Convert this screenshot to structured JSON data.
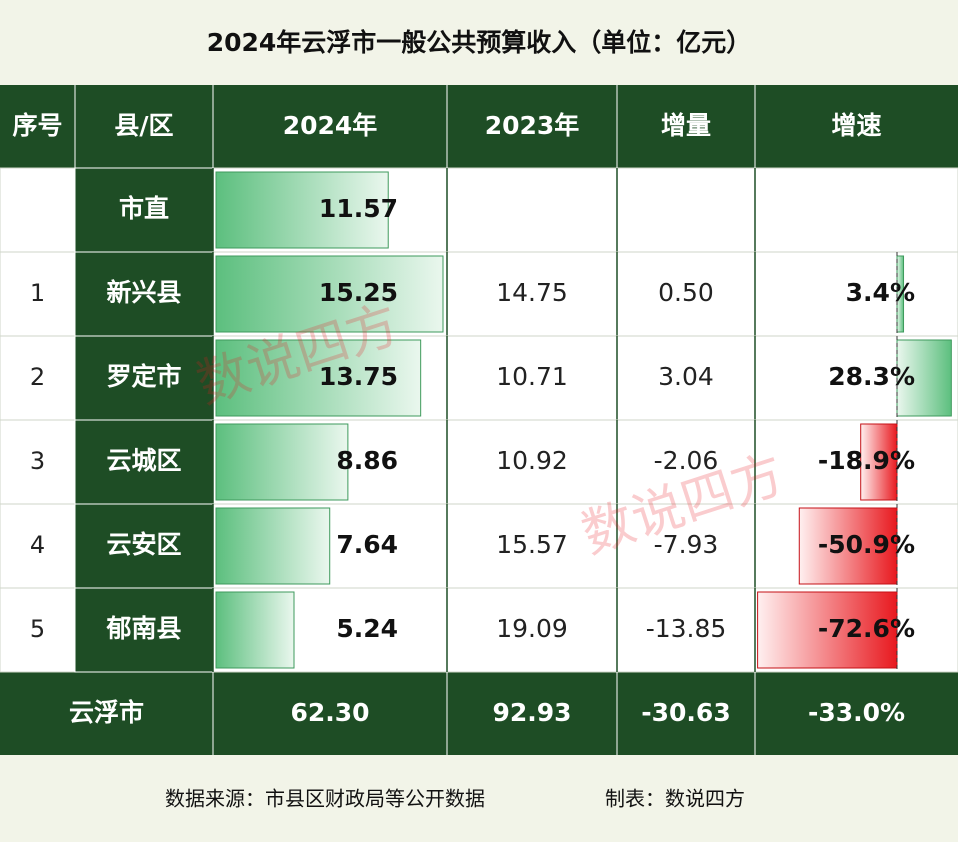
{
  "header": {
    "title": "2024年云浮市一般公共预算收入（单位：亿元）"
  },
  "table": {
    "columns": [
      "序号",
      "县/区",
      "2024年",
      "2023年",
      "增量",
      "增速"
    ],
    "rows": [
      {
        "index": null,
        "name": "市直",
        "v2024": 11.57,
        "v2023": null,
        "delta": null,
        "growth": null
      },
      {
        "index": "1",
        "name": "新兴县",
        "v2024": 15.25,
        "v2023": 14.75,
        "delta": {
          "value": 0.5,
          "label": "0.50"
        },
        "growth": {
          "value": 3.4,
          "label": "3.4%"
        }
      },
      {
        "index": "2",
        "name": "罗定市",
        "v2024": 13.75,
        "v2023": 10.71,
        "delta": 3.04,
        "growth": {
          "value": 28.3,
          "label": "28.3%"
        }
      },
      {
        "index": "3",
        "name": "云城区",
        "v2024": 8.86,
        "v2023": 10.92,
        "delta": -2.06,
        "growth": {
          "value": -18.9,
          "label": "-18.9%"
        }
      },
      {
        "index": "4",
        "name": "云安区",
        "v2024": 7.64,
        "v2023": 15.57,
        "delta": -7.93,
        "growth": {
          "value": -50.9,
          "label": "-50.9%"
        }
      },
      {
        "index": "5",
        "name": "郁南县",
        "v2024": 5.24,
        "v2023": 19.09,
        "delta": -13.85,
        "growth": {
          "value": -72.6,
          "label": "-72.6%"
        }
      }
    ],
    "total": {
      "name": "云浮市",
      "v2024": {
        "value": 62.3,
        "label": "62.30"
      },
      "v2023": 92.93,
      "delta": {
        "value": -30.63,
        "label": "-30.63"
      },
      "growth": {
        "value": -33.0,
        "label": "-33.0%"
      }
    }
  },
  "footer": {
    "source": "数据来源：市县区财政局等公开数据",
    "maker": "制表：数说四方"
  },
  "watermark": "数说四方"
}
